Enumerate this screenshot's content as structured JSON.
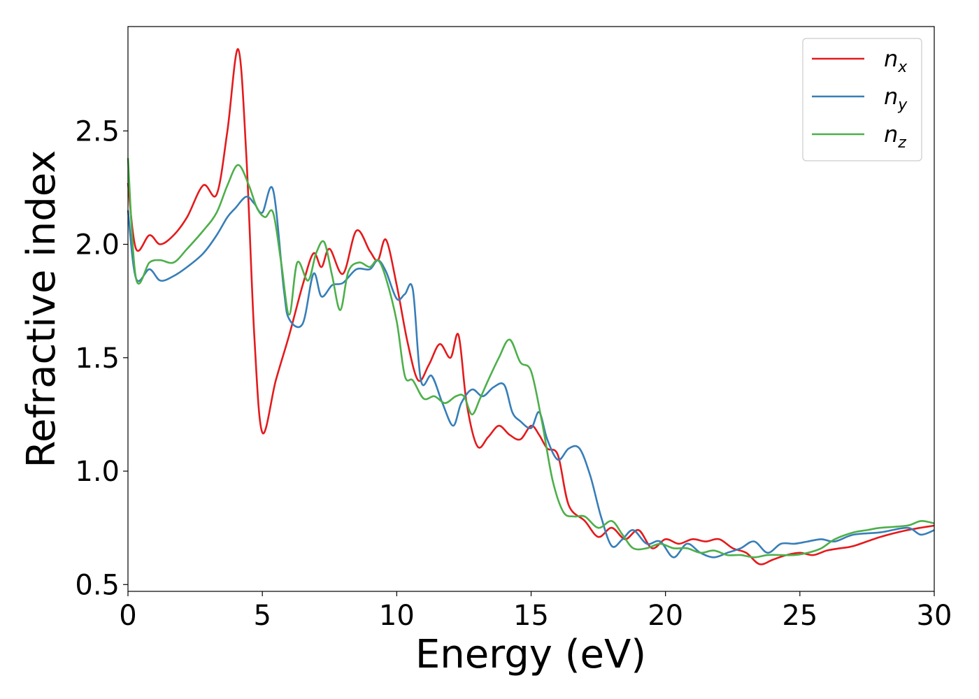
{
  "chart_data": {
    "type": "line",
    "title": "",
    "xlabel": "Energy (eV)",
    "ylabel": "Refractive index",
    "xlim": [
      0,
      30
    ],
    "ylim": [
      0.47,
      2.96
    ],
    "xticks": [
      0,
      5,
      10,
      15,
      20,
      25,
      30
    ],
    "xtick_labels": [
      "0",
      "5",
      "10",
      "15",
      "20",
      "25",
      "30"
    ],
    "yticks": [
      0.5,
      1.0,
      1.5,
      2.0,
      2.5
    ],
    "ytick_labels": [
      "0.5",
      "1.0",
      "1.5",
      "2.0",
      "2.5"
    ],
    "grid": false,
    "legend_position": "top-right",
    "series": [
      {
        "name": "n_x",
        "label_base": "n",
        "label_sub": "x",
        "color": "#e41a1c",
        "x": [
          0,
          0.3,
          0.8,
          1.2,
          1.7,
          2.2,
          2.8,
          3.3,
          3.7,
          4.1,
          4.4,
          4.7,
          5.0,
          5.5,
          6.0,
          6.5,
          6.9,
          7.2,
          7.5,
          8.0,
          8.5,
          9.0,
          9.3,
          9.6,
          10.0,
          10.4,
          10.8,
          11.2,
          11.6,
          12.0,
          12.3,
          12.6,
          13.0,
          13.4,
          13.8,
          14.2,
          14.6,
          15.0,
          15.3,
          15.6,
          16.0,
          16.4,
          17.0,
          17.5,
          18.0,
          18.5,
          19.0,
          19.5,
          20.0,
          20.5,
          21.0,
          21.5,
          22.0,
          22.5,
          23.0,
          23.5,
          24.0,
          24.5,
          25.0,
          25.5,
          26.0,
          26.5,
          27.0,
          28.0,
          29.0,
          30.0
        ],
        "y": [
          2.27,
          1.98,
          2.04,
          2.0,
          2.04,
          2.12,
          2.26,
          2.22,
          2.5,
          2.86,
          2.4,
          1.6,
          1.17,
          1.4,
          1.6,
          1.82,
          1.96,
          1.9,
          1.98,
          1.87,
          2.06,
          1.97,
          1.93,
          2.02,
          1.82,
          1.57,
          1.4,
          1.47,
          1.56,
          1.5,
          1.6,
          1.3,
          1.11,
          1.15,
          1.2,
          1.16,
          1.14,
          1.2,
          1.16,
          1.1,
          1.07,
          0.85,
          0.78,
          0.71,
          0.75,
          0.7,
          0.74,
          0.66,
          0.7,
          0.68,
          0.7,
          0.69,
          0.7,
          0.66,
          0.64,
          0.59,
          0.61,
          0.63,
          0.64,
          0.63,
          0.65,
          0.66,
          0.67,
          0.71,
          0.74,
          0.76
        ]
      },
      {
        "name": "n_y",
        "label_base": "n",
        "label_sub": "y",
        "color": "#377eb8",
        "x": [
          0,
          0.3,
          0.8,
          1.2,
          1.7,
          2.2,
          2.8,
          3.3,
          3.7,
          4.0,
          4.4,
          4.7,
          5.0,
          5.4,
          5.8,
          6.0,
          6.5,
          6.9,
          7.2,
          7.6,
          8.0,
          8.5,
          9.0,
          9.3,
          9.6,
          10.0,
          10.3,
          10.6,
          10.9,
          11.3,
          11.7,
          12.1,
          12.4,
          12.8,
          13.2,
          13.6,
          14.0,
          14.3,
          14.6,
          15.0,
          15.3,
          15.6,
          16.0,
          16.4,
          16.8,
          17.2,
          17.6,
          18.0,
          18.4,
          18.8,
          19.3,
          19.8,
          20.3,
          20.8,
          21.3,
          21.8,
          22.3,
          22.8,
          23.3,
          23.8,
          24.3,
          24.8,
          25.3,
          25.8,
          26.3,
          27.0,
          28.0,
          29.0,
          29.5,
          30.0
        ],
        "y": [
          2.15,
          1.85,
          1.89,
          1.84,
          1.86,
          1.9,
          1.96,
          2.04,
          2.12,
          2.16,
          2.21,
          2.18,
          2.14,
          2.24,
          1.8,
          1.67,
          1.65,
          1.87,
          1.77,
          1.82,
          1.83,
          1.89,
          1.89,
          1.93,
          1.88,
          1.76,
          1.78,
          1.8,
          1.4,
          1.42,
          1.3,
          1.2,
          1.3,
          1.36,
          1.33,
          1.37,
          1.38,
          1.26,
          1.22,
          1.19,
          1.26,
          1.14,
          1.05,
          1.1,
          1.1,
          0.98,
          0.8,
          0.67,
          0.7,
          0.74,
          0.68,
          0.69,
          0.62,
          0.68,
          0.64,
          0.62,
          0.64,
          0.66,
          0.69,
          0.64,
          0.68,
          0.68,
          0.69,
          0.7,
          0.69,
          0.72,
          0.73,
          0.75,
          0.72,
          0.74
        ]
      },
      {
        "name": "n_z",
        "label_base": "n",
        "label_sub": "z",
        "color": "#4daf4a",
        "x": [
          0,
          0.3,
          0.8,
          1.2,
          1.7,
          2.2,
          2.8,
          3.3,
          3.7,
          4.1,
          4.5,
          4.8,
          5.1,
          5.4,
          5.7,
          6.0,
          6.3,
          6.7,
          7.0,
          7.3,
          7.6,
          7.9,
          8.2,
          8.6,
          9.0,
          9.3,
          9.6,
          10.0,
          10.3,
          10.6,
          11.0,
          11.4,
          11.8,
          12.2,
          12.5,
          12.8,
          13.1,
          13.4,
          13.8,
          14.2,
          14.6,
          15.0,
          15.4,
          15.8,
          16.2,
          16.6,
          17.0,
          17.5,
          18.0,
          18.4,
          18.8,
          19.3,
          19.8,
          20.3,
          20.8,
          21.3,
          21.8,
          22.3,
          22.8,
          23.3,
          23.8,
          24.3,
          24.8,
          25.3,
          25.8,
          26.3,
          27.0,
          27.5,
          28.0,
          29.0,
          29.5,
          30.0
        ],
        "y": [
          2.38,
          1.85,
          1.92,
          1.93,
          1.92,
          1.98,
          2.06,
          2.14,
          2.26,
          2.35,
          2.26,
          2.16,
          2.12,
          2.14,
          1.92,
          1.69,
          1.92,
          1.84,
          1.96,
          2.01,
          1.86,
          1.71,
          1.88,
          1.92,
          1.9,
          1.93,
          1.85,
          1.66,
          1.42,
          1.4,
          1.32,
          1.33,
          1.3,
          1.33,
          1.33,
          1.25,
          1.32,
          1.4,
          1.5,
          1.58,
          1.48,
          1.44,
          1.22,
          0.96,
          0.82,
          0.8,
          0.8,
          0.75,
          0.78,
          0.72,
          0.66,
          0.66,
          0.68,
          0.66,
          0.66,
          0.64,
          0.65,
          0.63,
          0.63,
          0.62,
          0.63,
          0.63,
          0.63,
          0.64,
          0.66,
          0.7,
          0.73,
          0.74,
          0.75,
          0.76,
          0.78,
          0.77
        ]
      }
    ]
  }
}
